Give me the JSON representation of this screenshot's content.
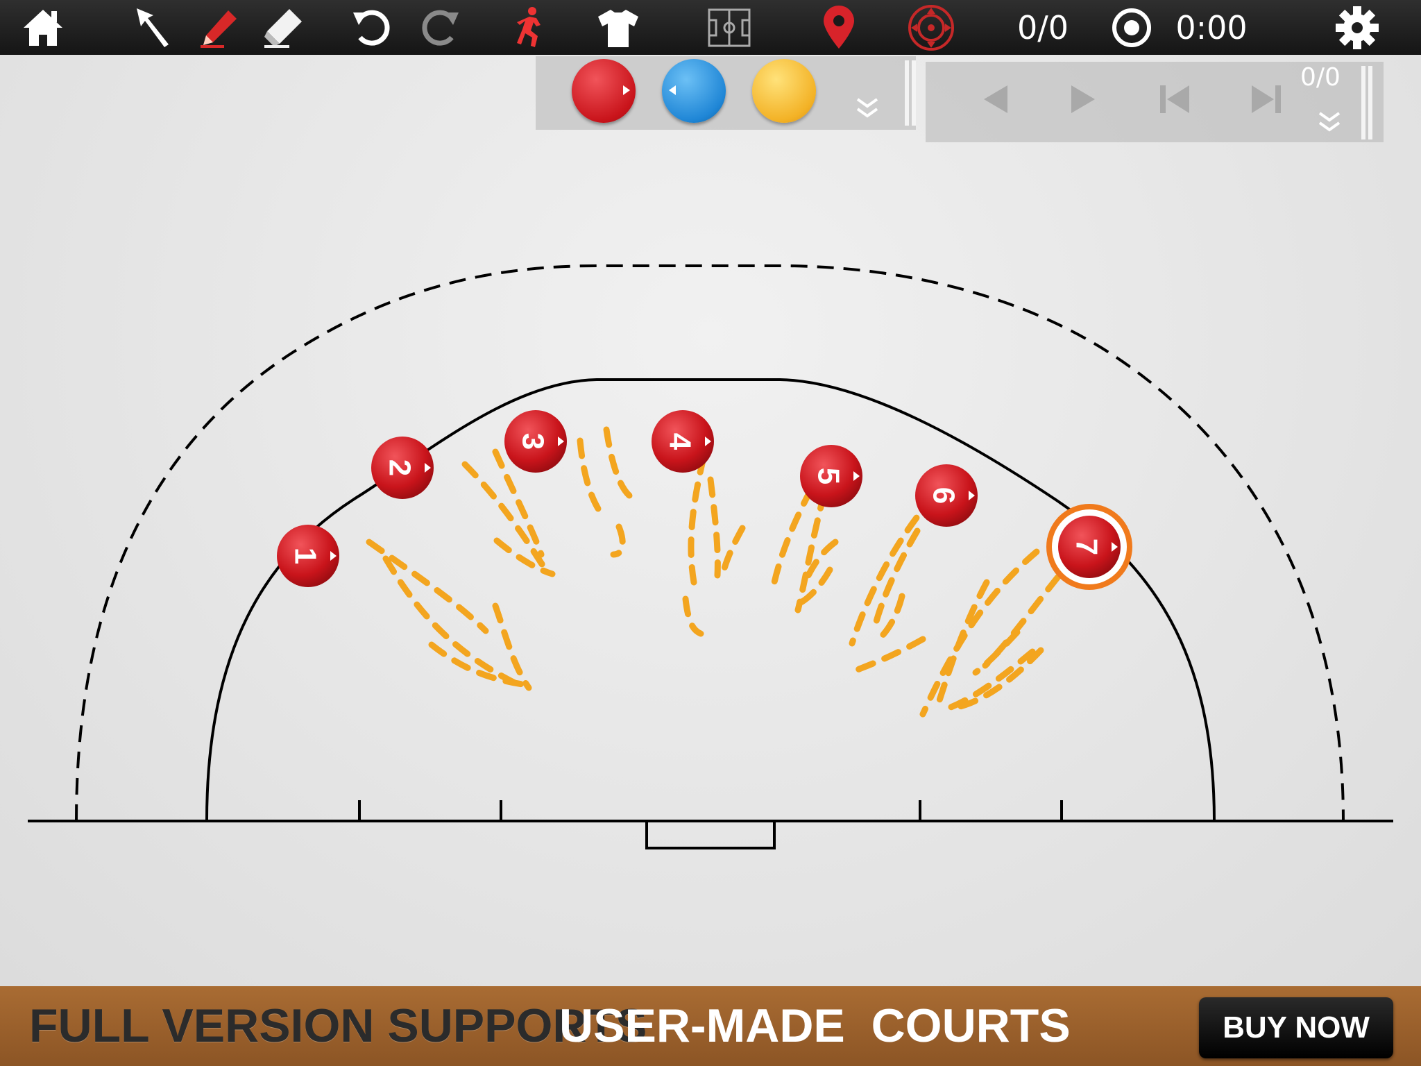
{
  "toolbar": {
    "home_icon": "home-icon",
    "select_icon": "arrow-pointer-icon",
    "pen_icon": "pen-icon",
    "eraser_icon": "eraser-icon",
    "undo_icon": "undo-icon",
    "redo_icon": "redo-icon",
    "player_icon": "running-player-icon",
    "shirt_icon": "shirt-icon",
    "court_icon": "court-icon",
    "marker_icon": "map-pin-icon",
    "target_icon": "target-icon",
    "frame_counter": "0/0",
    "record_icon": "record-icon",
    "timer": "0:00",
    "settings_icon": "gear-icon"
  },
  "token_panel": {
    "tokens": [
      {
        "name": "red-player-token",
        "color": "#d8232a"
      },
      {
        "name": "blue-player-token",
        "color": "#1f8ad8"
      },
      {
        "name": "yellow-ball-token",
        "color": "#f2b324"
      }
    ],
    "expand_icon": "double-chevron-down-icon"
  },
  "playback_panel": {
    "frame_counter": "0/0",
    "prev_icon": "prev-icon",
    "play_icon": "play-icon",
    "first_icon": "skip-back-icon",
    "last_icon": "skip-forward-icon",
    "expand_icon": "double-chevron-down-icon"
  },
  "players": [
    {
      "number": "1",
      "color": "#d8232a",
      "selected": false
    },
    {
      "number": "2",
      "color": "#d8232a",
      "selected": false
    },
    {
      "number": "3",
      "color": "#d8232a",
      "selected": false
    },
    {
      "number": "4",
      "color": "#d8232a",
      "selected": false
    },
    {
      "number": "5",
      "color": "#d8232a",
      "selected": false
    },
    {
      "number": "6",
      "color": "#d8232a",
      "selected": false
    },
    {
      "number": "7",
      "color": "#d8232a",
      "selected": true
    }
  ],
  "colors": {
    "toolbar_bg": "#1e1e1e",
    "player_red": "#d8232a",
    "selection_ring": "#f07a1c",
    "dash_orange": "#f3a51f",
    "banner_bg": "#9b5f2b"
  },
  "banner": {
    "text_part1": "FULL VERSION SUPPORTS",
    "text_part2": "USER-MADE  COURTS",
    "buy_button": "BUY NOW"
  }
}
